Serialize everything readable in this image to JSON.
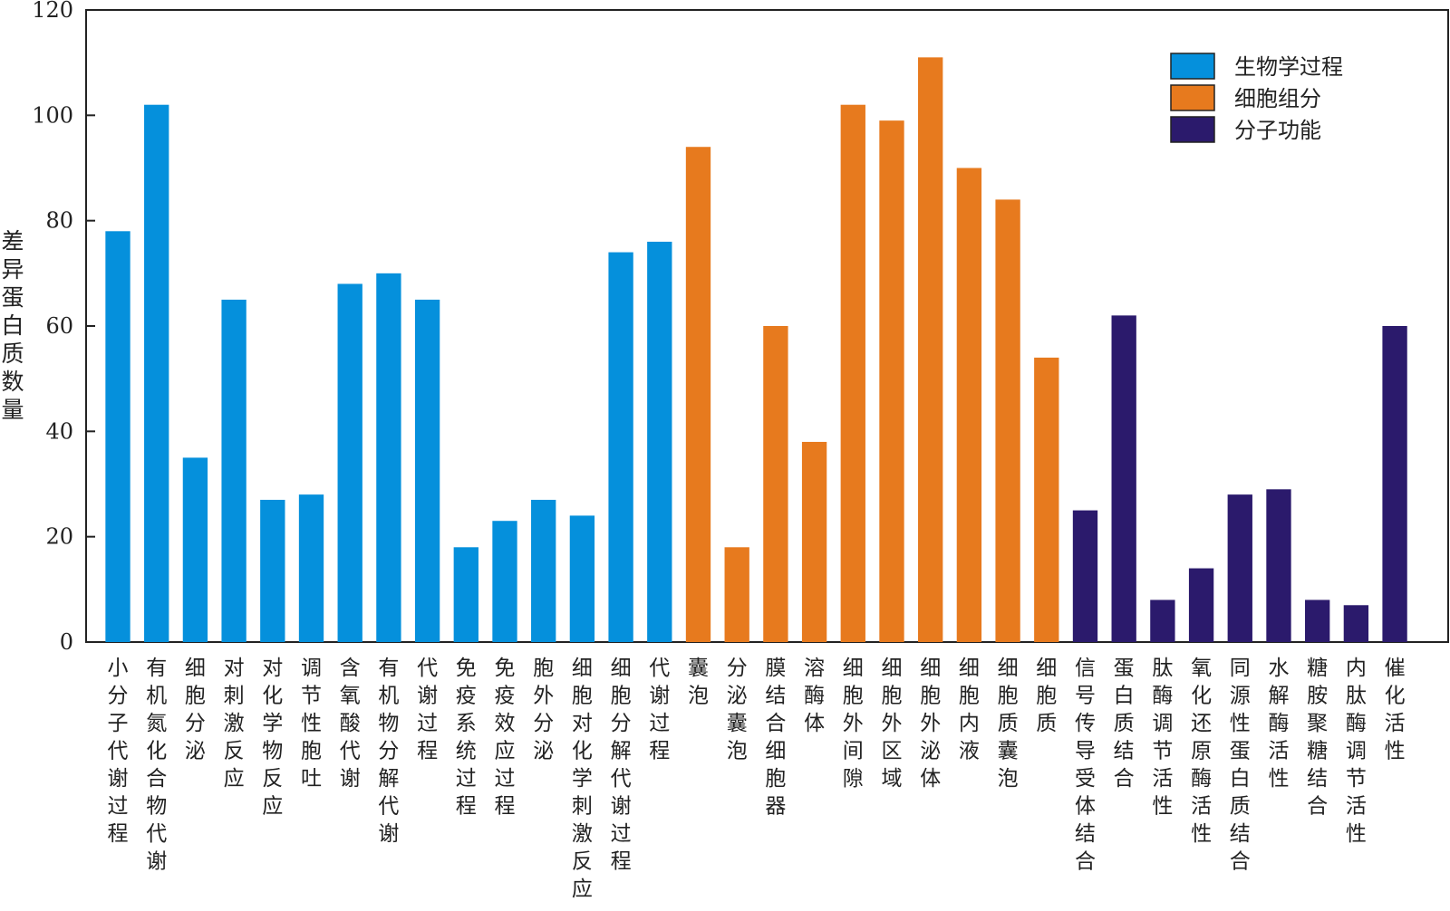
{
  "chart_data": {
    "type": "bar",
    "ylabel": "差异蛋白质数量",
    "ylim": [
      0,
      120
    ],
    "yticks": [
      0,
      20,
      40,
      60,
      80,
      100,
      120
    ],
    "legend_position": "top-right",
    "series": [
      {
        "name": "生物学过程",
        "color": "#0590dc",
        "categories": [
          "小分子代谢过程",
          "有机氮化合物代谢",
          "细胞分泌",
          "对刺激反应",
          "对化学物反应",
          "调节性胞吐",
          "含氧酸代谢",
          "有机物分解代谢",
          "代谢过程",
          "免疫系统过程",
          "免疫效应过程",
          "胞外分泌",
          "细胞对化学刺激反应",
          "细胞分解代谢过程",
          "代谢过程"
        ],
        "values": [
          78,
          102,
          35,
          65,
          27,
          28,
          68,
          70,
          65,
          18,
          23,
          27,
          24,
          74,
          76
        ]
      },
      {
        "name": "细胞组分",
        "color": "#e77a1e",
        "categories": [
          "囊泡",
          "分泌囊泡",
          "膜结合细胞器",
          "溶酶体",
          "细胞外间隙",
          "细胞外区域",
          "细胞外泌体",
          "细胞内液",
          "细胞质囊泡",
          "细胞质"
        ],
        "values": [
          94,
          18,
          60,
          38,
          102,
          99,
          111,
          90,
          84,
          54
        ]
      },
      {
        "name": "分子功能",
        "color": "#2b1a6c",
        "categories": [
          "信号传导受体结合",
          "蛋白质结合",
          "肽酶调节活性",
          "氧化还原酶活性",
          "同源性蛋白质结合",
          "水解酶活性",
          "糖胺聚糖结合",
          "内肽酶调节活性",
          "催化活性"
        ],
        "values": [
          25,
          62,
          8,
          14,
          28,
          29,
          8,
          7,
          60
        ]
      }
    ]
  }
}
